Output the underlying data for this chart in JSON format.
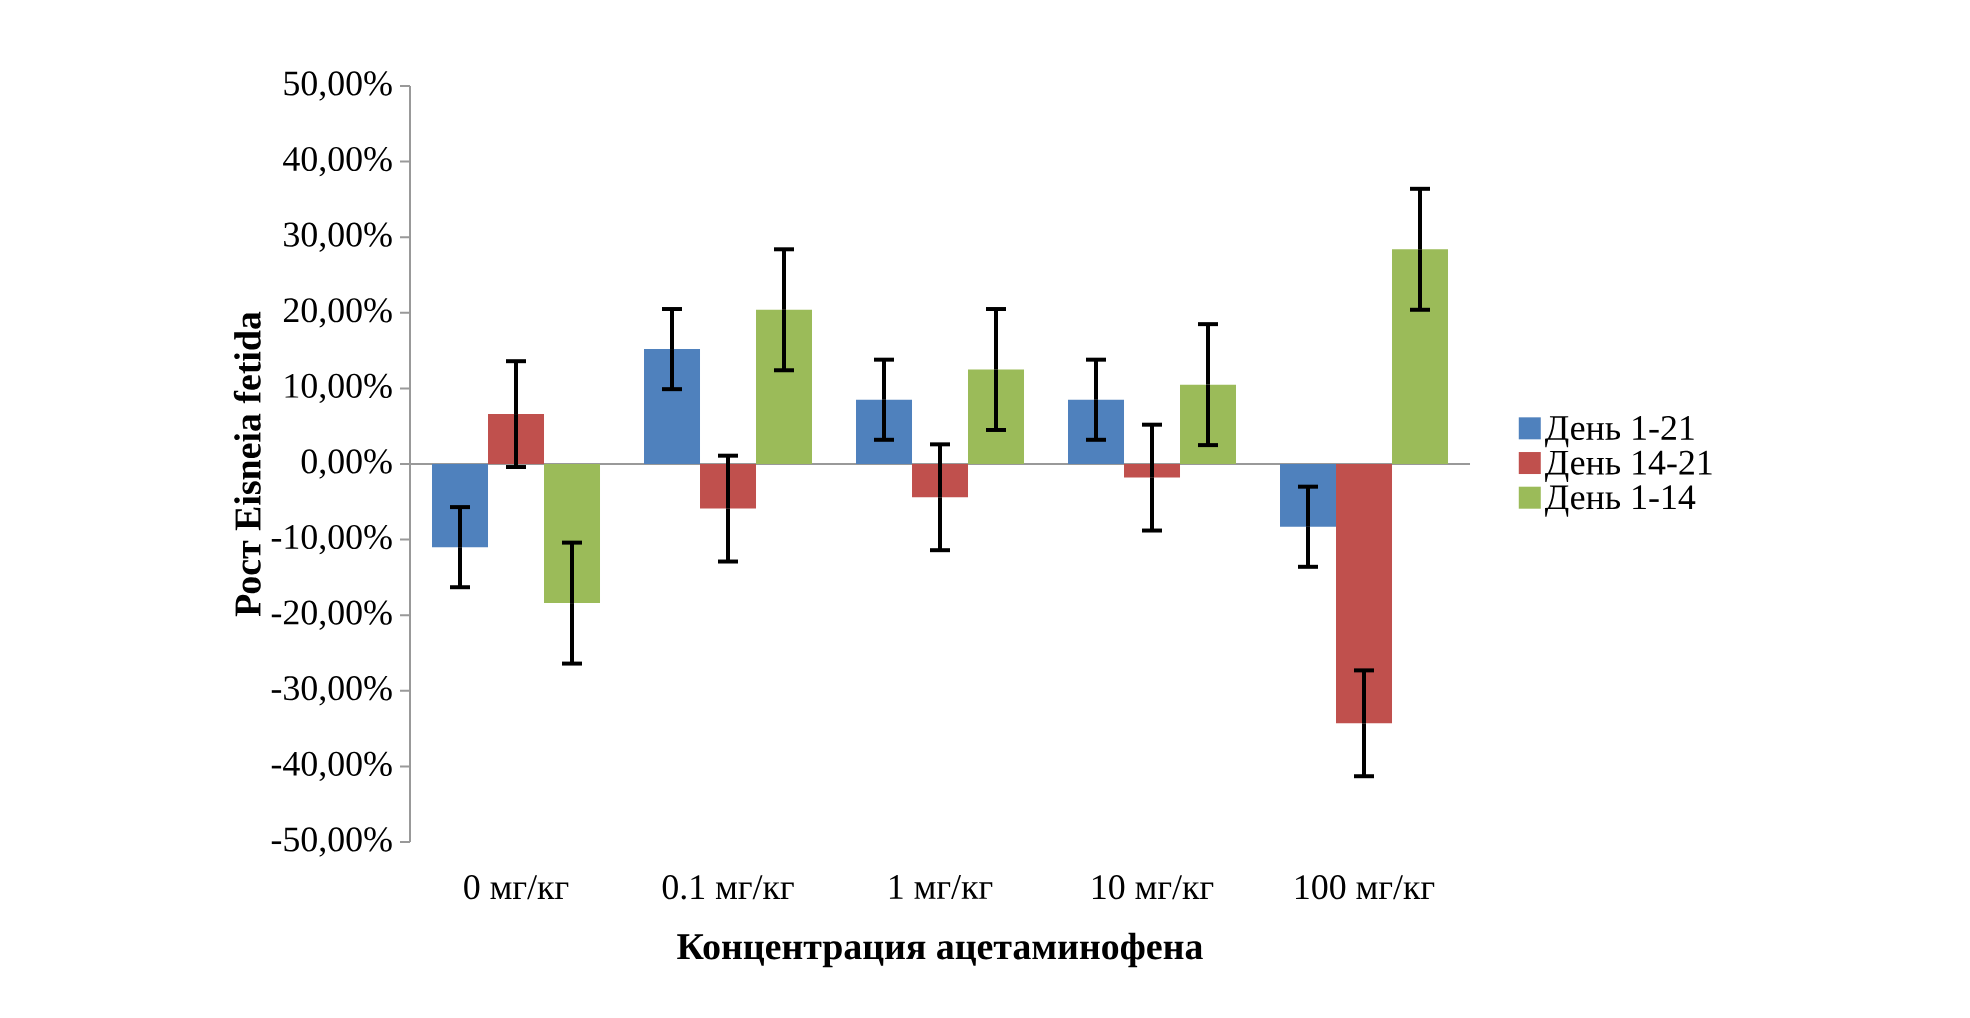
{
  "chart_data": {
    "type": "bar",
    "xlabel": "Концентрация ацетаминофена",
    "ylabel": "Рост Eisneia fetida",
    "categories": [
      "0 мг/кг",
      "0.1 мг/кг",
      "1 мг/кг",
      "10 мг/кг",
      "100 мг/кг"
    ],
    "series": [
      {
        "name": "День 1-21",
        "color": "#4f81bd",
        "values": [
          -11,
          15.2,
          8.5,
          8.5,
          -8.3
        ],
        "errors": [
          5.3,
          5.3,
          5.3,
          5.3,
          5.3
        ]
      },
      {
        "name": "День 14-21",
        "color": "#c0504d",
        "values": [
          6.6,
          -5.9,
          -4.4,
          -1.8,
          -34.3
        ],
        "errors": [
          7,
          7,
          7,
          7,
          7
        ]
      },
      {
        "name": "День 1-14",
        "color": "#9bbb59",
        "values": [
          -18.4,
          20.4,
          12.5,
          10.5,
          28.4
        ],
        "errors": [
          8,
          8,
          8,
          8,
          8
        ]
      }
    ],
    "ylim": [
      -50,
      50
    ],
    "yticks": [
      {
        "value": -50,
        "label": "-50,00%"
      },
      {
        "value": -40,
        "label": "-40,00%"
      },
      {
        "value": -30,
        "label": "-30,00%"
      },
      {
        "value": -20,
        "label": "-20,00%"
      },
      {
        "value": -10,
        "label": "-10,00%"
      },
      {
        "value": 0,
        "label": "0,00%"
      },
      {
        "value": 10,
        "label": "10,00%"
      },
      {
        "value": 20,
        "label": "20,00%"
      },
      {
        "value": 30,
        "label": "30,00%"
      },
      {
        "value": 40,
        "label": "40,00%"
      },
      {
        "value": 50,
        "label": "50,00%"
      }
    ],
    "legend": "right"
  }
}
